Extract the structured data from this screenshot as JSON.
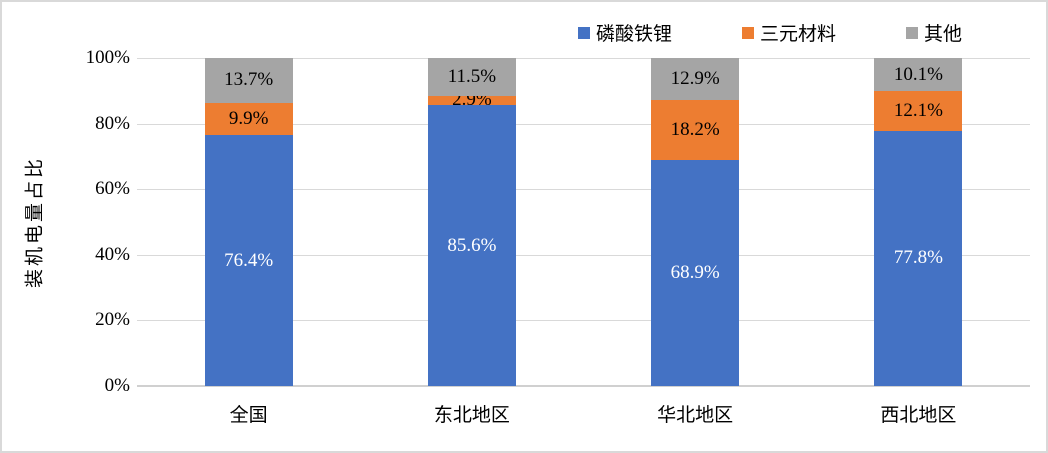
{
  "chart_data": {
    "type": "bar",
    "stacked": true,
    "title": "",
    "xlabel": "",
    "ylabel": "装机电量占比",
    "ylim": [
      0,
      100
    ],
    "grid": true,
    "legend_position": "top",
    "categories": [
      "全国",
      "东北地区",
      "华北地区",
      "西北地区"
    ],
    "yticks": [
      {
        "value": 0,
        "label": "0%"
      },
      {
        "value": 20,
        "label": "20%"
      },
      {
        "value": 40,
        "label": "40%"
      },
      {
        "value": 60,
        "label": "60%"
      },
      {
        "value": 80,
        "label": "80%"
      },
      {
        "value": 100,
        "label": "100%"
      }
    ],
    "series": [
      {
        "name": "磷酸铁锂",
        "color": "#4472C4",
        "label_color": "#FFFFFF",
        "values": [
          76.4,
          85.6,
          68.9,
          77.8
        ],
        "labels": [
          "76.4%",
          "85.6%",
          "68.9%",
          "77.8%"
        ]
      },
      {
        "name": "三元材料",
        "color": "#ED7D31",
        "label_color": "#000000",
        "values": [
          9.9,
          2.9,
          18.2,
          12.1
        ],
        "labels": [
          "9.9%",
          "2.9%",
          "18.2%",
          "12.1%"
        ]
      },
      {
        "name": "其他",
        "color": "#A5A5A5",
        "label_color": "#000000",
        "values": [
          13.7,
          11.5,
          12.9,
          10.1
        ],
        "labels": [
          "13.7%",
          "11.5%",
          "12.9%",
          "10.1%"
        ]
      }
    ],
    "colors": {
      "gridline": "#D9D9D9",
      "frame_border": "#D9D9D9",
      "background": "#FFFFFF",
      "text": "#000000"
    }
  }
}
